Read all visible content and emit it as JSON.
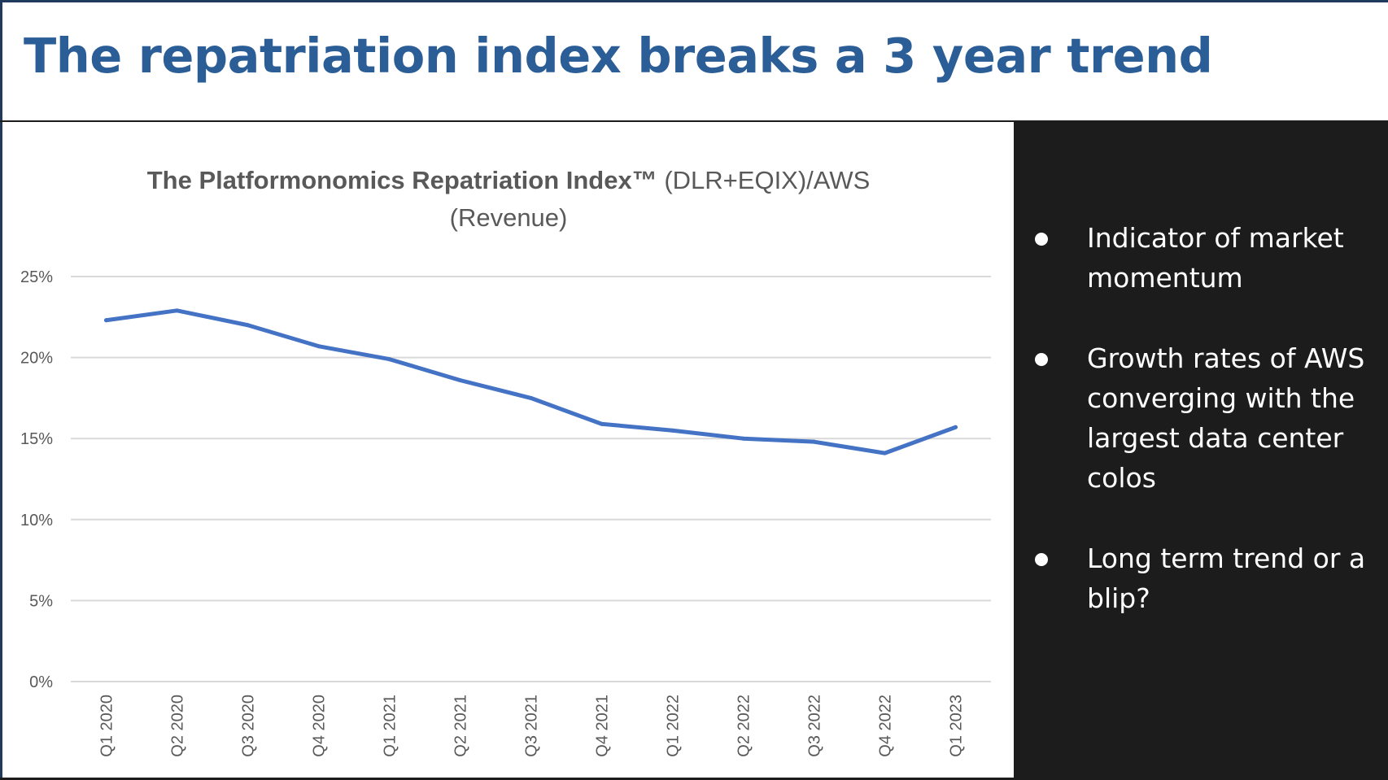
{
  "slide": {
    "title": "The repatriation index breaks a 3 year trend"
  },
  "chart_data": {
    "type": "line",
    "title_bold": "The Platformonomics Repatriation Index™",
    "title_rest": " (DLR+EQIX)/AWS",
    "subtitle": "(Revenue)",
    "xlabel": "",
    "ylabel": "",
    "ylim": [
      0,
      25
    ],
    "y_ticks": [
      0,
      5,
      10,
      15,
      20,
      25
    ],
    "y_tick_labels": [
      "0%",
      "5%",
      "10%",
      "15%",
      "20%",
      "25%"
    ],
    "grid": true,
    "categories": [
      "Q1 2020",
      "Q2 2020",
      "Q3 2020",
      "Q4 2020",
      "Q1 2021",
      "Q2 2021",
      "Q3 2021",
      "Q4 2021",
      "Q1 2022",
      "Q2 2022",
      "Q3 2022",
      "Q4 2022",
      "Q1 2023"
    ],
    "series": [
      {
        "values": [
          22.3,
          22.9,
          22.0,
          20.7,
          19.9,
          18.6,
          17.5,
          15.9,
          15.5,
          15.0,
          14.8,
          14.1,
          15.7
        ],
        "color": "#4472c4"
      }
    ]
  },
  "bullets": [
    {
      "text": "Indicator of market momentum"
    },
    {
      "text": "Growth rates of AWS converging with the largest data center colos"
    },
    {
      "text": "Long term trend or a blip?"
    }
  ],
  "colors": {
    "title": "#2b5d96",
    "line": "#4472c4",
    "panel_dark": "#1c1c1c",
    "gridline": "#d9d9d9",
    "axis_text": "#595959"
  }
}
